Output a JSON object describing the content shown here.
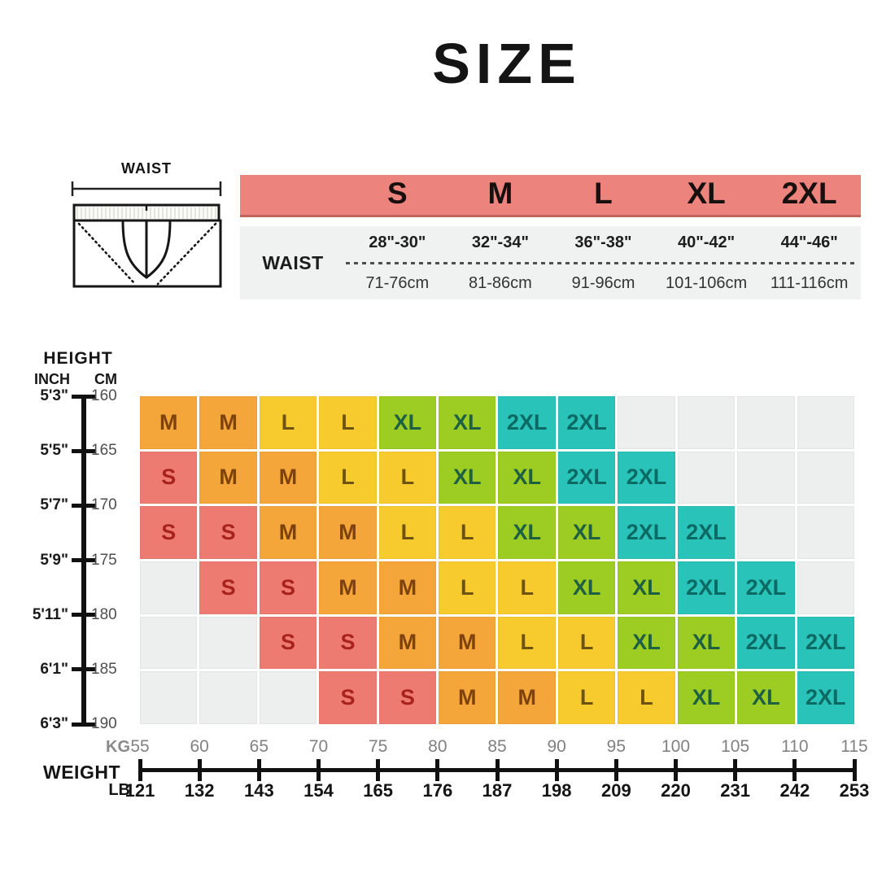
{
  "title": "SIZE",
  "waist_diagram": {
    "label": "WAIST"
  },
  "size_table": {
    "row_label": "WAIST",
    "columns": [
      {
        "size": "S",
        "inches": "28\"-30\"",
        "cm": "71-76cm"
      },
      {
        "size": "M",
        "inches": "32\"-34\"",
        "cm": "81-86cm"
      },
      {
        "size": "L",
        "inches": "36\"-38\"",
        "cm": "91-96cm"
      },
      {
        "size": "XL",
        "inches": "40\"-42\"",
        "cm": "101-106cm"
      },
      {
        "size": "2XL",
        "inches": "44\"-46\"",
        "cm": "111-116cm"
      }
    ]
  },
  "chart_data": {
    "type": "heatmap",
    "title": "SIZE",
    "x_axis": {
      "label": "WEIGHT",
      "kg_label": "KG",
      "lb_label": "LB",
      "kg": [
        55,
        60,
        65,
        70,
        75,
        80,
        85,
        90,
        95,
        100,
        105,
        110,
        115
      ],
      "lb": [
        121,
        132,
        143,
        154,
        165,
        176,
        187,
        198,
        209,
        220,
        231,
        242,
        253
      ]
    },
    "y_axis": {
      "label": "HEIGHT",
      "inch_label": "INCH",
      "cm_label": "CM",
      "inch": [
        "5'3\"",
        "5'5\"",
        "5'7\"",
        "5'9\"",
        "5'11\"",
        "6'1\"",
        "6'3\""
      ],
      "cm": [
        160,
        165,
        170,
        175,
        180,
        185,
        190
      ]
    },
    "rows": [
      [
        "M",
        "M",
        "L",
        "L",
        "XL",
        "XL",
        "2XL",
        "2XL",
        "",
        "",
        "",
        ""
      ],
      [
        "S",
        "M",
        "M",
        "L",
        "L",
        "XL",
        "XL",
        "2XL",
        "2XL",
        "",
        "",
        ""
      ],
      [
        "S",
        "S",
        "M",
        "M",
        "L",
        "L",
        "XL",
        "XL",
        "2XL",
        "2XL",
        "",
        ""
      ],
      [
        "",
        "S",
        "S",
        "M",
        "M",
        "L",
        "L",
        "XL",
        "XL",
        "2XL",
        "2XL",
        ""
      ],
      [
        "",
        "",
        "S",
        "S",
        "M",
        "M",
        "L",
        "L",
        "XL",
        "XL",
        "2XL",
        "2XL"
      ],
      [
        "",
        "",
        "",
        "S",
        "S",
        "M",
        "M",
        "L",
        "L",
        "XL",
        "XL",
        "2XL"
      ]
    ],
    "legend": {
      "S": {
        "bg": "#ee7b71",
        "text": "#a8231d"
      },
      "M": {
        "bg": "#f4a63a",
        "text": "#7d420e"
      },
      "L": {
        "bg": "#f7ca2e",
        "text": "#6e5310"
      },
      "XL": {
        "bg": "#9dcc23",
        "text": "#1e6041"
      },
      "2XL": {
        "bg": "#2ac3b9",
        "text": "#0c6a64"
      },
      "empty_bg": "#edefee"
    },
    "grid": true,
    "legend_position": "none"
  },
  "colors": {
    "header_bg": "#ec837d",
    "header_border": "#c2625d",
    "table_bg": "#f0f1f1",
    "axis": "#111111",
    "kg_text": "#818181",
    "lb_text": "#141414"
  }
}
